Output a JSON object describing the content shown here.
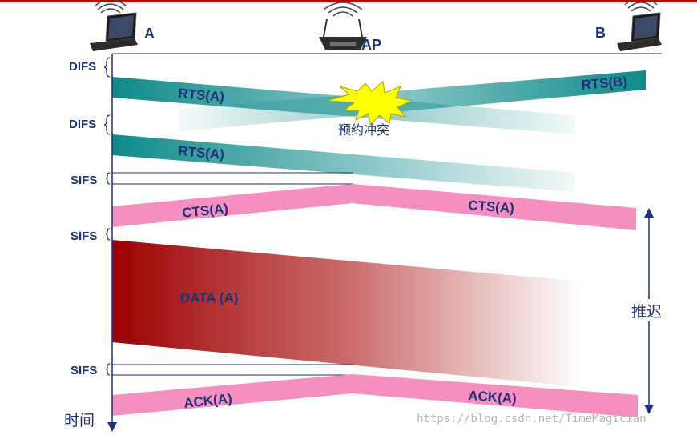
{
  "colors": {
    "top_border": "#c00000",
    "label_text": "#1f2f7a",
    "rts_band": "#0e8a8a",
    "cts_band": "#f48fc0",
    "data_band": "#9c0000",
    "collision_star": "#ffff00",
    "timeline": "#1f2f7a"
  },
  "nodes": {
    "a": {
      "label": "A",
      "icon": "laptop-icon"
    },
    "ap": {
      "label": "AP",
      "icon": "wireless-router-icon"
    },
    "b": {
      "label": "B",
      "icon": "laptop-icon"
    }
  },
  "intervals": {
    "difs_1": "DIFS",
    "difs_2": "DIFS",
    "sifs_1": "SIFS",
    "sifs_2": "SIFS",
    "sifs_3": "SIFS"
  },
  "frames": {
    "rts_a_1": "RTS(A)",
    "rts_b": "RTS(B)",
    "collision": "预约冲突",
    "rts_a_2": "RTS(A)",
    "cts_a_left": "CTS(A)",
    "cts_a_right": "CTS(A)",
    "data_a": "DATA (A)",
    "ack_a_left": "ACK(A)",
    "ack_a_right": "ACK(A)"
  },
  "axis": {
    "time_label": "时间"
  },
  "defer": {
    "label": "推迟"
  },
  "watermark": "https://blog.csdn.net/TimeMagician"
}
